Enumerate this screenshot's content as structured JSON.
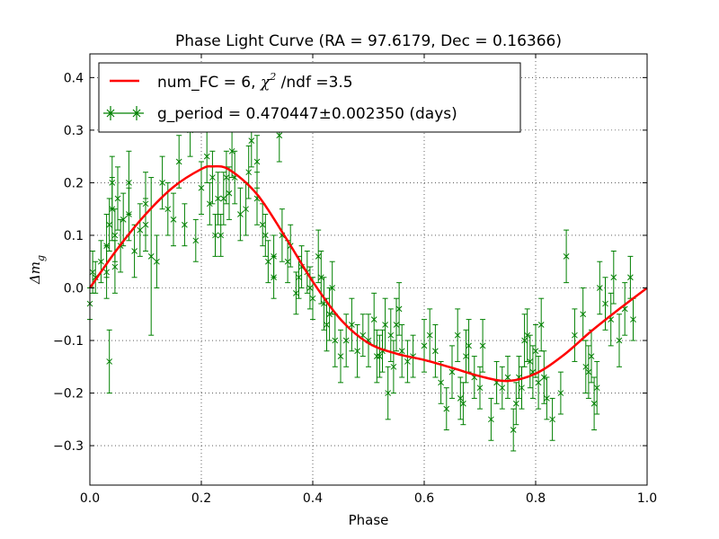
{
  "chart_data": {
    "type": "scatter",
    "title": "Phase Light Curve (RA = 97.6179, Dec = 0.16366)",
    "xlabel": "Phase",
    "ylabel_main": "Δm",
    "ylabel_sub": "g",
    "xlim": [
      0.0,
      1.0
    ],
    "ylim": [
      -0.375,
      0.445
    ],
    "xticks": [
      0.0,
      0.2,
      0.4,
      0.6,
      0.8,
      1.0
    ],
    "xtick_labels": [
      "0.0",
      "0.2",
      "0.4",
      "0.6",
      "0.8",
      "1.0"
    ],
    "yticks": [
      -0.3,
      -0.2,
      -0.1,
      0.0,
      0.1,
      0.2,
      0.3,
      0.4
    ],
    "ytick_labels": [
      "−0.3",
      "−0.2",
      "−0.1",
      "0.0",
      "0.1",
      "0.2",
      "0.3",
      "0.4"
    ],
    "grid": true,
    "legend_position": "top-left",
    "legend": {
      "fit_label_pre": "num_FC = 6, ",
      "fit_label_chi": "χ",
      "fit_label_sup": "2",
      "fit_label_post": " /ndf =3.5",
      "data_label": "g_period = 0.470447±0.002350 (days)"
    },
    "series": [
      {
        "name": "num_FC = 6, χ² /ndf =3.5",
        "kind": "line",
        "color": "#ff0000",
        "x": [
          0.0,
          0.05,
          0.1,
          0.15,
          0.2,
          0.22,
          0.25,
          0.3,
          0.35,
          0.4,
          0.45,
          0.5,
          0.55,
          0.6,
          0.65,
          0.7,
          0.75,
          0.8,
          0.85,
          0.9,
          0.95,
          1.0
        ],
        "y": [
          0.0,
          0.075,
          0.14,
          0.192,
          0.226,
          0.231,
          0.225,
          0.178,
          0.098,
          0.012,
          -0.06,
          -0.105,
          -0.125,
          -0.137,
          -0.152,
          -0.168,
          -0.177,
          -0.163,
          -0.128,
          -0.082,
          -0.04,
          0.0
        ]
      },
      {
        "name": "g_period = 0.470447±0.002350 (days)",
        "kind": "errorbar",
        "color": "#008000",
        "points": [
          [
            0.0,
            -0.03,
            0.03
          ],
          [
            0.005,
            0.03,
            0.04
          ],
          [
            0.01,
            0.02,
            0.03
          ],
          [
            0.02,
            0.05,
            0.04
          ],
          [
            0.03,
            0.08,
            0.06
          ],
          [
            0.03,
            0.03,
            0.05
          ],
          [
            0.035,
            -0.14,
            0.06
          ],
          [
            0.035,
            0.12,
            0.05
          ],
          [
            0.04,
            0.2,
            0.05
          ],
          [
            0.04,
            0.15,
            0.06
          ],
          [
            0.045,
            0.1,
            0.05
          ],
          [
            0.045,
            0.04,
            0.05
          ],
          [
            0.05,
            0.17,
            0.06
          ],
          [
            0.055,
            0.08,
            0.05
          ],
          [
            0.06,
            0.13,
            0.05
          ],
          [
            0.07,
            0.2,
            0.06
          ],
          [
            0.07,
            0.14,
            0.05
          ],
          [
            0.08,
            0.07,
            0.05
          ],
          [
            0.09,
            0.11,
            0.05
          ],
          [
            0.1,
            0.16,
            0.06
          ],
          [
            0.1,
            0.12,
            0.05
          ],
          [
            0.11,
            0.06,
            0.15
          ],
          [
            0.12,
            0.05,
            0.05
          ],
          [
            0.13,
            0.2,
            0.05
          ],
          [
            0.14,
            0.15,
            0.05
          ],
          [
            0.15,
            0.13,
            0.05
          ],
          [
            0.16,
            0.24,
            0.05
          ],
          [
            0.17,
            0.12,
            0.04
          ],
          [
            0.18,
            0.3,
            0.05
          ],
          [
            0.19,
            0.09,
            0.04
          ],
          [
            0.2,
            0.19,
            0.05
          ],
          [
            0.21,
            0.25,
            0.05
          ],
          [
            0.215,
            0.16,
            0.04
          ],
          [
            0.22,
            0.21,
            0.05
          ],
          [
            0.225,
            0.1,
            0.04
          ],
          [
            0.23,
            0.17,
            0.05
          ],
          [
            0.235,
            0.1,
            0.04
          ],
          [
            0.24,
            0.17,
            0.05
          ],
          [
            0.245,
            0.21,
            0.05
          ],
          [
            0.25,
            0.18,
            0.05
          ],
          [
            0.255,
            0.26,
            0.05
          ],
          [
            0.26,
            0.21,
            0.05
          ],
          [
            0.27,
            0.14,
            0.05
          ],
          [
            0.28,
            0.15,
            0.05
          ],
          [
            0.285,
            0.22,
            0.05
          ],
          [
            0.29,
            0.28,
            0.05
          ],
          [
            0.3,
            0.17,
            0.05
          ],
          [
            0.3,
            0.24,
            0.05
          ],
          [
            0.31,
            0.12,
            0.04
          ],
          [
            0.315,
            0.1,
            0.04
          ],
          [
            0.32,
            0.05,
            0.04
          ],
          [
            0.33,
            0.06,
            0.04
          ],
          [
            0.33,
            0.02,
            0.04
          ],
          [
            0.34,
            0.29,
            0.05
          ],
          [
            0.345,
            0.1,
            0.05
          ],
          [
            0.355,
            0.05,
            0.04
          ],
          [
            0.36,
            0.08,
            0.04
          ],
          [
            0.37,
            -0.01,
            0.04
          ],
          [
            0.375,
            0.02,
            0.04
          ],
          [
            0.38,
            0.04,
            0.04
          ],
          [
            0.39,
            0.03,
            0.04
          ],
          [
            0.395,
            0.0,
            0.04
          ],
          [
            0.4,
            -0.02,
            0.04
          ],
          [
            0.41,
            0.06,
            0.05
          ],
          [
            0.415,
            0.02,
            0.05
          ],
          [
            0.42,
            -0.03,
            0.05
          ],
          [
            0.425,
            -0.07,
            0.05
          ],
          [
            0.43,
            -0.05,
            0.05
          ],
          [
            0.435,
            0.0,
            0.05
          ],
          [
            0.44,
            -0.1,
            0.05
          ],
          [
            0.45,
            -0.13,
            0.05
          ],
          [
            0.46,
            -0.1,
            0.05
          ],
          [
            0.47,
            -0.07,
            0.05
          ],
          [
            0.48,
            -0.12,
            0.05
          ],
          [
            0.49,
            -0.09,
            0.04
          ],
          [
            0.5,
            -0.1,
            0.05
          ],
          [
            0.51,
            -0.06,
            0.05
          ],
          [
            0.515,
            -0.13,
            0.05
          ],
          [
            0.52,
            -0.13,
            0.04
          ],
          [
            0.525,
            -0.12,
            0.04
          ],
          [
            0.53,
            -0.07,
            0.05
          ],
          [
            0.535,
            -0.2,
            0.05
          ],
          [
            0.54,
            -0.09,
            0.05
          ],
          [
            0.545,
            -0.15,
            0.05
          ],
          [
            0.55,
            -0.07,
            0.05
          ],
          [
            0.555,
            -0.04,
            0.05
          ],
          [
            0.56,
            -0.12,
            0.05
          ],
          [
            0.57,
            -0.14,
            0.04
          ],
          [
            0.58,
            -0.13,
            0.04
          ],
          [
            0.6,
            -0.11,
            0.05
          ],
          [
            0.61,
            -0.09,
            0.05
          ],
          [
            0.62,
            -0.12,
            0.05
          ],
          [
            0.63,
            -0.18,
            0.04
          ],
          [
            0.64,
            -0.23,
            0.04
          ],
          [
            0.65,
            -0.16,
            0.05
          ],
          [
            0.66,
            -0.09,
            0.05
          ],
          [
            0.665,
            -0.21,
            0.04
          ],
          [
            0.67,
            -0.22,
            0.04
          ],
          [
            0.675,
            -0.13,
            0.05
          ],
          [
            0.68,
            -0.11,
            0.05
          ],
          [
            0.69,
            -0.17,
            0.04
          ],
          [
            0.7,
            -0.19,
            0.04
          ],
          [
            0.705,
            -0.11,
            0.05
          ],
          [
            0.72,
            -0.25,
            0.04
          ],
          [
            0.73,
            -0.18,
            0.04
          ],
          [
            0.74,
            -0.19,
            0.04
          ],
          [
            0.75,
            -0.17,
            0.04
          ],
          [
            0.76,
            -0.27,
            0.04
          ],
          [
            0.765,
            -0.22,
            0.04
          ],
          [
            0.77,
            -0.17,
            0.04
          ],
          [
            0.775,
            -0.19,
            0.04
          ],
          [
            0.78,
            -0.1,
            0.05
          ],
          [
            0.785,
            -0.09,
            0.05
          ],
          [
            0.79,
            -0.14,
            0.05
          ],
          [
            0.795,
            -0.16,
            0.05
          ],
          [
            0.8,
            -0.12,
            0.05
          ],
          [
            0.805,
            -0.18,
            0.05
          ],
          [
            0.81,
            -0.07,
            0.05
          ],
          [
            0.815,
            -0.17,
            0.05
          ],
          [
            0.82,
            -0.21,
            0.04
          ],
          [
            0.83,
            -0.25,
            0.04
          ],
          [
            0.845,
            -0.2,
            0.04
          ],
          [
            0.855,
            0.06,
            0.05
          ],
          [
            0.87,
            -0.09,
            0.05
          ],
          [
            0.885,
            -0.05,
            0.05
          ],
          [
            0.89,
            -0.15,
            0.05
          ],
          [
            0.895,
            -0.16,
            0.05
          ],
          [
            0.9,
            -0.13,
            0.05
          ],
          [
            0.905,
            -0.22,
            0.05
          ],
          [
            0.91,
            -0.19,
            0.05
          ],
          [
            0.915,
            0.0,
            0.05
          ],
          [
            0.925,
            -0.03,
            0.05
          ],
          [
            0.935,
            -0.06,
            0.05
          ],
          [
            0.94,
            0.02,
            0.05
          ],
          [
            0.95,
            -0.1,
            0.05
          ],
          [
            0.96,
            -0.04,
            0.05
          ],
          [
            0.97,
            0.02,
            0.04
          ],
          [
            0.975,
            -0.06,
            0.04
          ]
        ]
      }
    ]
  }
}
